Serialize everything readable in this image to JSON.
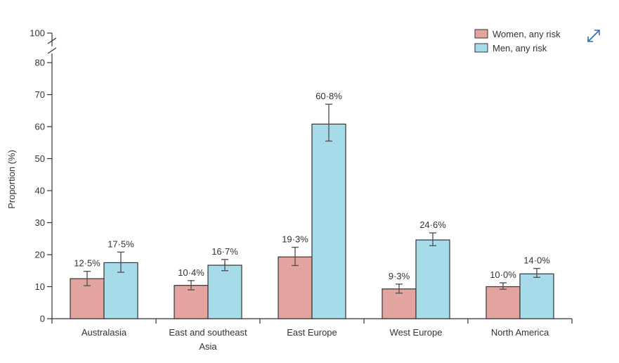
{
  "chart_data": {
    "type": "bar",
    "ylabel": "Proportion (%)",
    "ylim": [
      0,
      100
    ],
    "y_ticks": [
      "0",
      "10",
      "20",
      "30",
      "40",
      "50",
      "60",
      "70",
      "80",
      "100"
    ],
    "y_axis_break": "between 80 and 100",
    "categories": [
      [
        "Australasia"
      ],
      [
        "East and southeast",
        "Asia"
      ],
      [
        "East Europe"
      ],
      [
        "West Europe"
      ],
      [
        "North America"
      ]
    ],
    "series": [
      {
        "name": "Women, any risk",
        "color": "#e3a49f",
        "values": [
          12.5,
          10.4,
          19.3,
          9.3,
          10.0
        ],
        "labels": [
          "12·5%",
          "10·4%",
          "19·3%",
          "9·3%",
          "10·0%"
        ],
        "ci_low": [
          10.3,
          9.0,
          16.6,
          8.0,
          9.2
        ],
        "ci_high": [
          14.8,
          11.9,
          22.3,
          10.8,
          11.2
        ]
      },
      {
        "name": "Men, any risk",
        "color": "#a6dbe9",
        "values": [
          17.5,
          16.7,
          60.8,
          24.6,
          14.0
        ],
        "labels": [
          "17·5%",
          "16·7%",
          "60·8%",
          "24·6%",
          "14·0%"
        ],
        "ci_low": [
          14.5,
          15.0,
          55.5,
          22.8,
          12.9
        ],
        "ci_high": [
          20.8,
          18.5,
          67.0,
          26.8,
          15.7
        ]
      }
    ],
    "legend_position": "top-right",
    "grid": false
  },
  "icons": {
    "expand": "expand-icon"
  }
}
